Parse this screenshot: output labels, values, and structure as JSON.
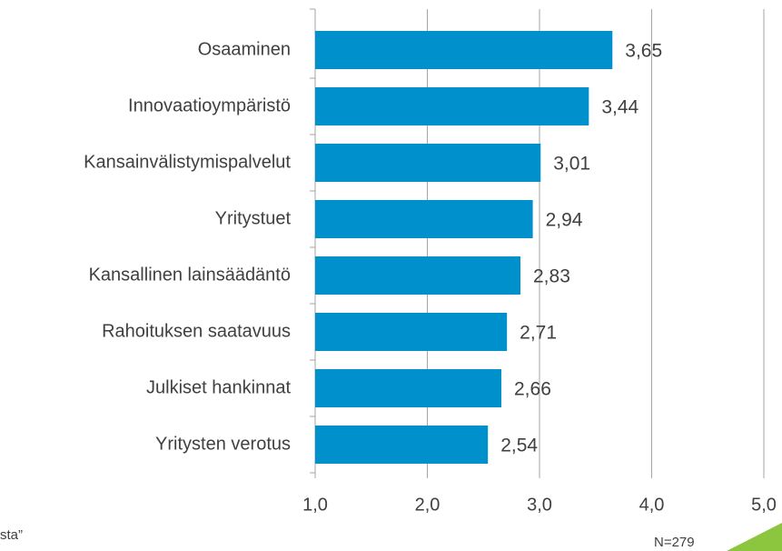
{
  "chart_data": {
    "type": "hbar",
    "categories": [
      "Osaaminen",
      "Innovaatioympäristö",
      "Kansainvälistymispalvelut",
      "Yritystuet",
      "Kansallinen lainsäädäntö",
      "Rahoituksen saatavuus",
      "Julkiset hankinnat",
      "Yritysten verotus"
    ],
    "values": [
      3.65,
      3.44,
      3.01,
      2.94,
      2.83,
      2.71,
      2.66,
      2.54
    ],
    "value_labels": [
      "3,65",
      "3,44",
      "3,01",
      "2,94",
      "2,83",
      "2,71",
      "2,66",
      "2,54"
    ],
    "color": "#0091cd",
    "xlim": [
      1,
      5
    ],
    "xticks": [
      {
        "value": 1,
        "label": "1,0"
      },
      {
        "value": 2,
        "label": "2,0"
      },
      {
        "value": 3,
        "label": "3,0"
      },
      {
        "value": 4,
        "label": "4,0"
      },
      {
        "value": 5,
        "label": "5,0"
      }
    ],
    "grid": true,
    "annotations": [
      "sta”",
      "N=279"
    ]
  }
}
